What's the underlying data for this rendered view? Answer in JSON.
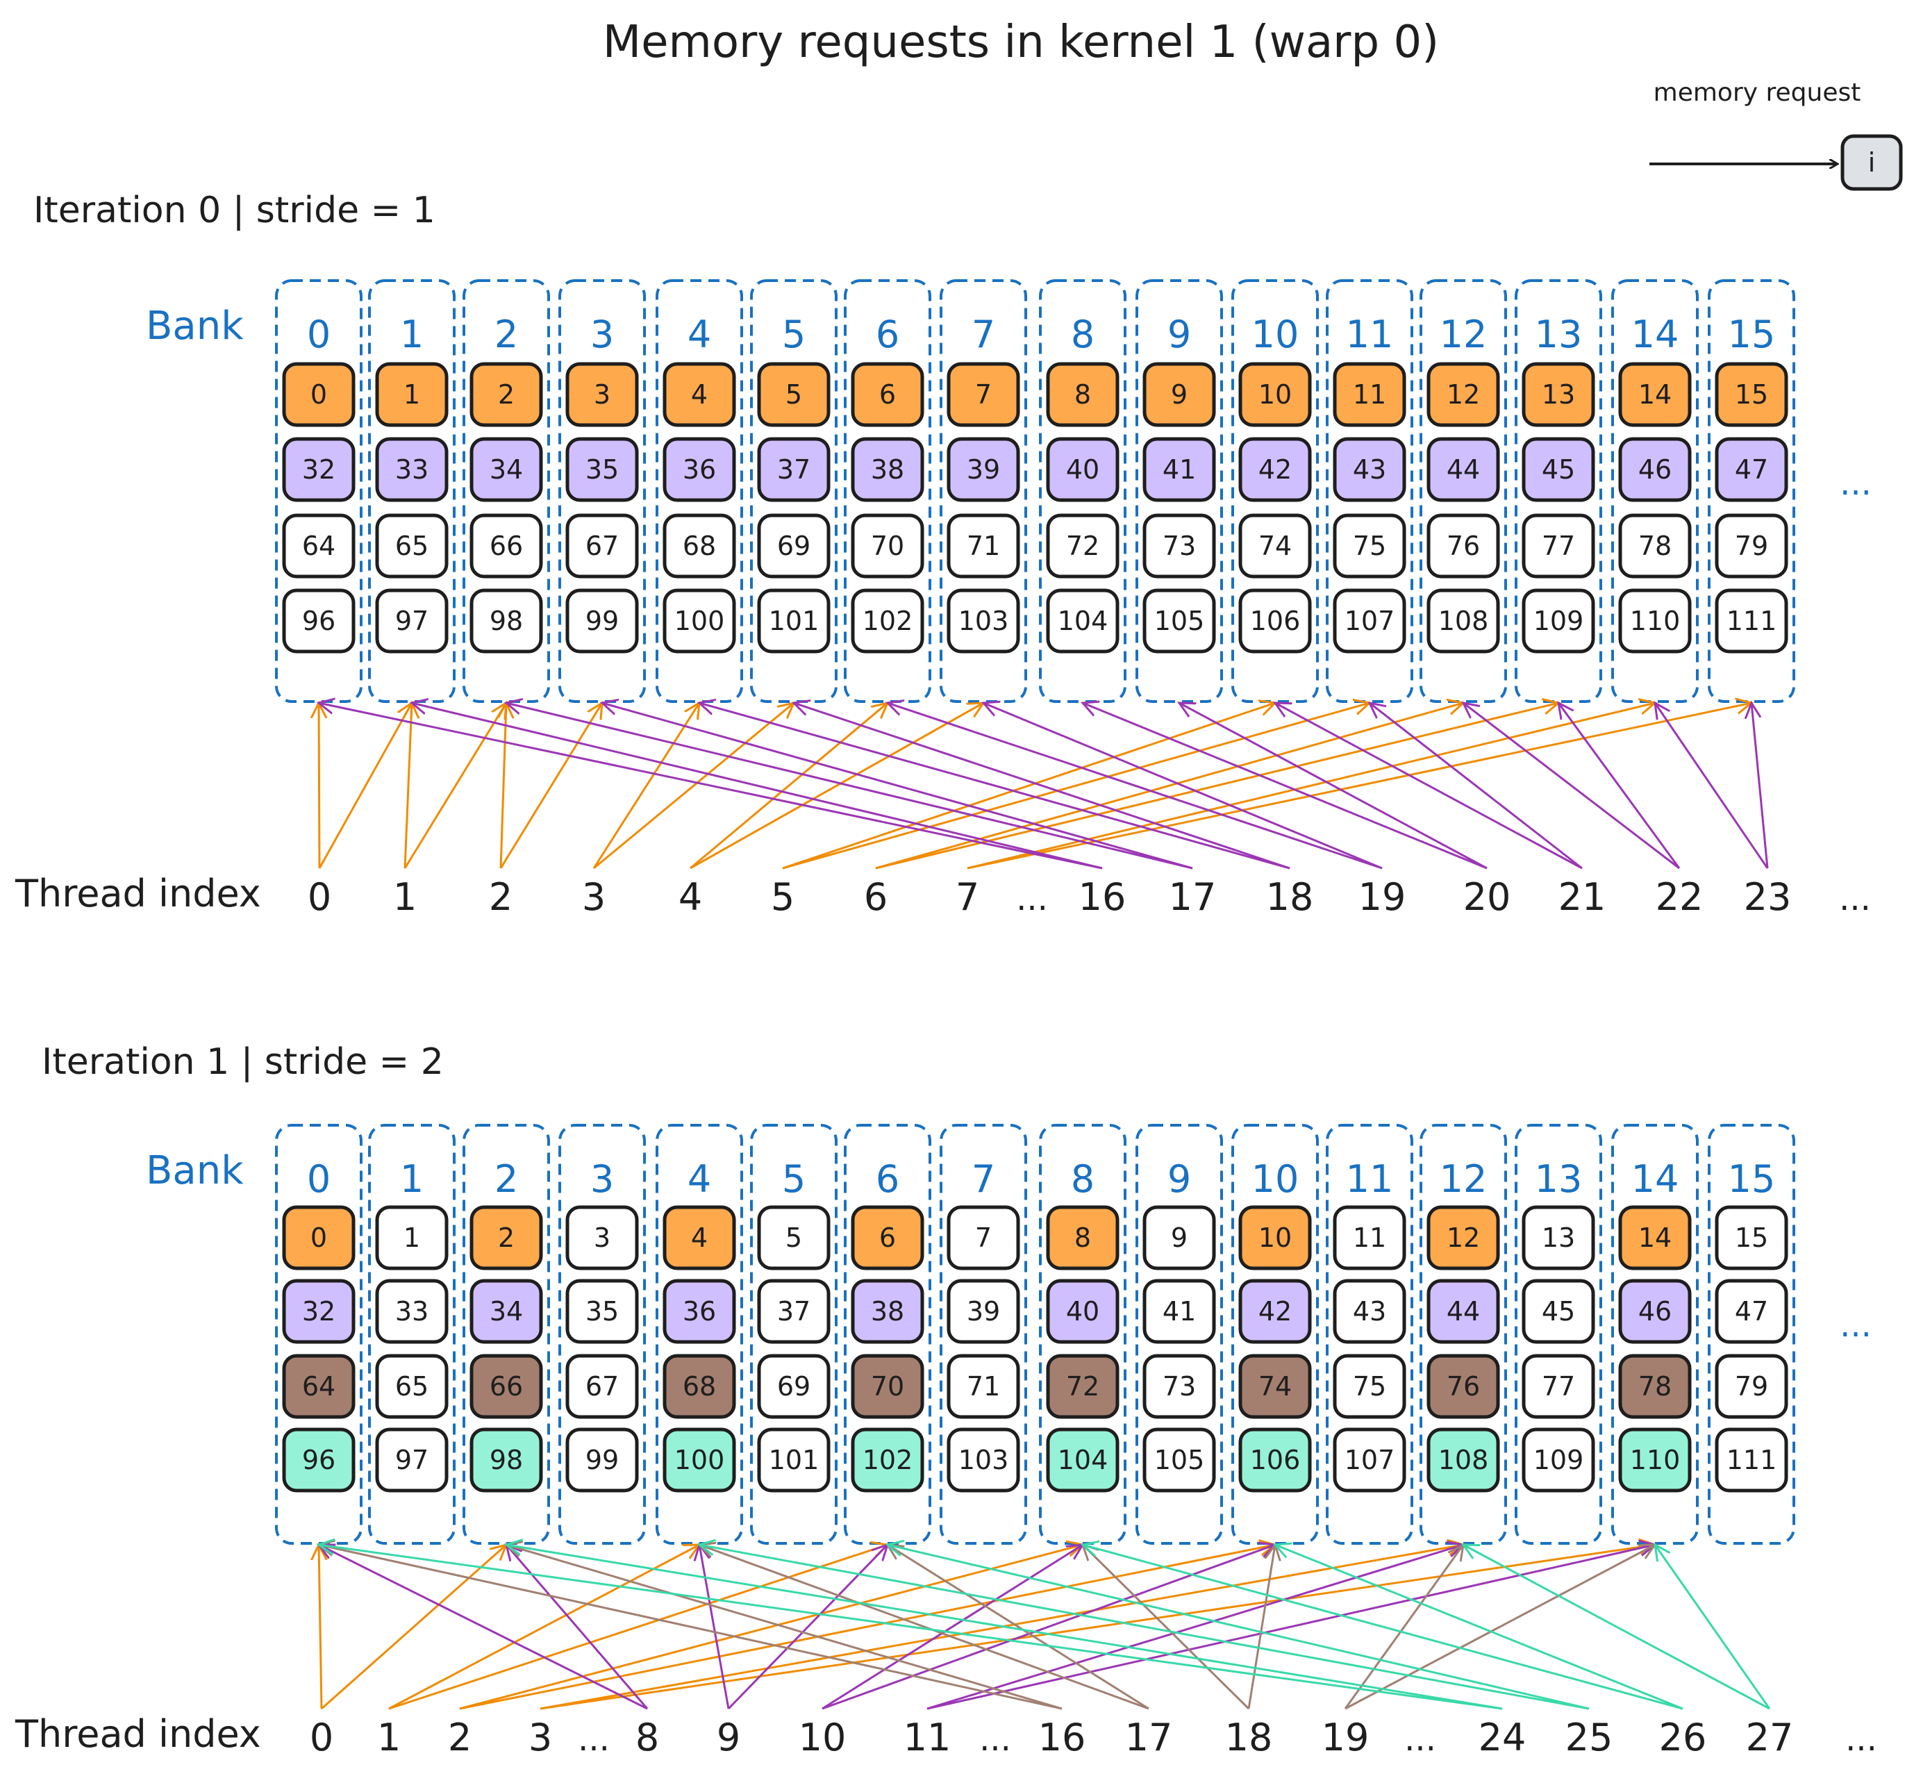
{
  "title": "Memory requests in kernel 1 (warp 0)",
  "legend": {
    "label": "memory request",
    "box_text": "i",
    "box_color": "#dee2e6"
  },
  "colors": {
    "orange": "#ffa94d",
    "purple": "#d0bfff",
    "brown": "#a47f6f",
    "teal": "#96f2d7",
    "white": "#ffffff",
    "bank_blue": "#1971c2",
    "arrow_orange": "#f08c00",
    "arrow_purple": "#9c36b5",
    "arrow_brown": "#a18072",
    "arrow_teal": "#38d9a9"
  },
  "banks": [
    "0",
    "1",
    "2",
    "3",
    "4",
    "5",
    "6",
    "7",
    "8",
    "9",
    "10",
    "11",
    "12",
    "13",
    "14",
    "15"
  ],
  "iterations": [
    {
      "label": "Iteration 0 | stride = 1",
      "bank_label": "Bank",
      "rows": [
        {
          "values": [
            "0",
            "1",
            "2",
            "3",
            "4",
            "5",
            "6",
            "7",
            "8",
            "9",
            "10",
            "11",
            "12",
            "13",
            "14",
            "15"
          ],
          "colors": [
            "orange",
            "orange",
            "orange",
            "orange",
            "orange",
            "orange",
            "orange",
            "orange",
            "orange",
            "orange",
            "orange",
            "orange",
            "orange",
            "orange",
            "orange",
            "orange"
          ]
        },
        {
          "values": [
            "32",
            "33",
            "34",
            "35",
            "36",
            "37",
            "38",
            "39",
            "40",
            "41",
            "42",
            "43",
            "44",
            "45",
            "46",
            "47"
          ],
          "colors": [
            "purple",
            "purple",
            "purple",
            "purple",
            "purple",
            "purple",
            "purple",
            "purple",
            "purple",
            "purple",
            "purple",
            "purple",
            "purple",
            "purple",
            "purple",
            "purple"
          ]
        },
        {
          "values": [
            "64",
            "65",
            "66",
            "67",
            "68",
            "69",
            "70",
            "71",
            "72",
            "73",
            "74",
            "75",
            "76",
            "77",
            "78",
            "79"
          ],
          "colors": [
            "white",
            "white",
            "white",
            "white",
            "white",
            "white",
            "white",
            "white",
            "white",
            "white",
            "white",
            "white",
            "white",
            "white",
            "white",
            "white"
          ]
        },
        {
          "values": [
            "96",
            "97",
            "98",
            "99",
            "100",
            "101",
            "102",
            "103",
            "104",
            "105",
            "106",
            "107",
            "108",
            "109",
            "110",
            "111"
          ],
          "colors": [
            "white",
            "white",
            "white",
            "white",
            "white",
            "white",
            "white",
            "white",
            "white",
            "white",
            "white",
            "white",
            "white",
            "white",
            "white",
            "white"
          ]
        }
      ],
      "more": "...",
      "thread_label": "Thread index",
      "threads": [
        "0",
        "1",
        "2",
        "3",
        "4",
        "5",
        "6",
        "7",
        "...",
        "16",
        "17",
        "18",
        "19",
        "20",
        "21",
        "22",
        "23",
        "..."
      ],
      "arrows": [
        {
          "thread": "0",
          "bank": 0,
          "color": "arrow_orange"
        },
        {
          "thread": "0",
          "bank": 1,
          "color": "arrow_orange"
        },
        {
          "thread": "1",
          "bank": 1,
          "color": "arrow_orange"
        },
        {
          "thread": "1",
          "bank": 2,
          "color": "arrow_orange"
        },
        {
          "thread": "2",
          "bank": 2,
          "color": "arrow_orange"
        },
        {
          "thread": "2",
          "bank": 3,
          "color": "arrow_orange"
        },
        {
          "thread": "3",
          "bank": 4,
          "color": "arrow_orange"
        },
        {
          "thread": "3",
          "bank": 5,
          "color": "arrow_orange"
        },
        {
          "thread": "4",
          "bank": 6,
          "color": "arrow_orange"
        },
        {
          "thread": "4",
          "bank": 7,
          "color": "arrow_orange"
        },
        {
          "thread": "5",
          "bank": 10,
          "color": "arrow_orange"
        },
        {
          "thread": "5",
          "bank": 11,
          "color": "arrow_orange"
        },
        {
          "thread": "6",
          "bank": 12,
          "color": "arrow_orange"
        },
        {
          "thread": "6",
          "bank": 13,
          "color": "arrow_orange"
        },
        {
          "thread": "7",
          "bank": 14,
          "color": "arrow_orange"
        },
        {
          "thread": "7",
          "bank": 15,
          "color": "arrow_orange"
        },
        {
          "thread": "16",
          "bank": 0,
          "color": "arrow_purple"
        },
        {
          "thread": "16",
          "bank": 1,
          "color": "arrow_purple"
        },
        {
          "thread": "17",
          "bank": 2,
          "color": "arrow_purple"
        },
        {
          "thread": "17",
          "bank": 3,
          "color": "arrow_purple"
        },
        {
          "thread": "18",
          "bank": 4,
          "color": "arrow_purple"
        },
        {
          "thread": "18",
          "bank": 5,
          "color": "arrow_purple"
        },
        {
          "thread": "19",
          "bank": 6,
          "color": "arrow_purple"
        },
        {
          "thread": "19",
          "bank": 7,
          "color": "arrow_purple"
        },
        {
          "thread": "20",
          "bank": 8,
          "color": "arrow_purple"
        },
        {
          "thread": "20",
          "bank": 9,
          "color": "arrow_purple"
        },
        {
          "thread": "21",
          "bank": 10,
          "color": "arrow_purple"
        },
        {
          "thread": "21",
          "bank": 11,
          "color": "arrow_purple"
        },
        {
          "thread": "22",
          "bank": 12,
          "color": "arrow_purple"
        },
        {
          "thread": "22",
          "bank": 13,
          "color": "arrow_purple"
        },
        {
          "thread": "23",
          "bank": 14,
          "color": "arrow_purple"
        },
        {
          "thread": "23",
          "bank": 15,
          "color": "arrow_purple"
        }
      ]
    },
    {
      "label": "Iteration 1 | stride = 2",
      "bank_label": "Bank",
      "rows": [
        {
          "values": [
            "0",
            "1",
            "2",
            "3",
            "4",
            "5",
            "6",
            "7",
            "8",
            "9",
            "10",
            "11",
            "12",
            "13",
            "14",
            "15"
          ],
          "colors": [
            "orange",
            "white",
            "orange",
            "white",
            "orange",
            "white",
            "orange",
            "white",
            "orange",
            "white",
            "orange",
            "white",
            "orange",
            "white",
            "orange",
            "white"
          ]
        },
        {
          "values": [
            "32",
            "33",
            "34",
            "35",
            "36",
            "37",
            "38",
            "39",
            "40",
            "41",
            "42",
            "43",
            "44",
            "45",
            "46",
            "47"
          ],
          "colors": [
            "purple",
            "white",
            "purple",
            "white",
            "purple",
            "white",
            "purple",
            "white",
            "purple",
            "white",
            "purple",
            "white",
            "purple",
            "white",
            "purple",
            "white"
          ]
        },
        {
          "values": [
            "64",
            "65",
            "66",
            "67",
            "68",
            "69",
            "70",
            "71",
            "72",
            "73",
            "74",
            "75",
            "76",
            "77",
            "78",
            "79"
          ],
          "colors": [
            "brown",
            "white",
            "brown",
            "white",
            "brown",
            "white",
            "brown",
            "white",
            "brown",
            "white",
            "brown",
            "white",
            "brown",
            "white",
            "brown",
            "white"
          ]
        },
        {
          "values": [
            "96",
            "97",
            "98",
            "99",
            "100",
            "101",
            "102",
            "103",
            "104",
            "105",
            "106",
            "107",
            "108",
            "109",
            "110",
            "111"
          ],
          "colors": [
            "teal",
            "white",
            "teal",
            "white",
            "teal",
            "white",
            "teal",
            "white",
            "teal",
            "white",
            "teal",
            "white",
            "teal",
            "white",
            "teal",
            "white"
          ]
        }
      ],
      "more": "...",
      "thread_label": "Thread index",
      "threads": [
        "0",
        "1",
        "2",
        "3",
        "...",
        "8",
        "9",
        "10",
        "11",
        "...",
        "16",
        "17",
        "18",
        "19",
        "...",
        "24",
        "25",
        "26",
        "27",
        "..."
      ],
      "arrows": [
        {
          "thread": "0",
          "bank": 0,
          "color": "arrow_orange"
        },
        {
          "thread": "0",
          "bank": 2,
          "color": "arrow_orange"
        },
        {
          "thread": "1",
          "bank": 4,
          "color": "arrow_orange"
        },
        {
          "thread": "1",
          "bank": 6,
          "color": "arrow_orange"
        },
        {
          "thread": "2",
          "bank": 8,
          "color": "arrow_orange"
        },
        {
          "thread": "2",
          "bank": 10,
          "color": "arrow_orange"
        },
        {
          "thread": "3",
          "bank": 12,
          "color": "arrow_orange"
        },
        {
          "thread": "3",
          "bank": 14,
          "color": "arrow_orange"
        },
        {
          "thread": "8",
          "bank": 0,
          "color": "arrow_purple"
        },
        {
          "thread": "8",
          "bank": 2,
          "color": "arrow_purple"
        },
        {
          "thread": "9",
          "bank": 4,
          "color": "arrow_purple"
        },
        {
          "thread": "9",
          "bank": 6,
          "color": "arrow_purple"
        },
        {
          "thread": "10",
          "bank": 8,
          "color": "arrow_purple"
        },
        {
          "thread": "10",
          "bank": 10,
          "color": "arrow_purple"
        },
        {
          "thread": "11",
          "bank": 12,
          "color": "arrow_purple"
        },
        {
          "thread": "11",
          "bank": 14,
          "color": "arrow_purple"
        },
        {
          "thread": "16",
          "bank": 0,
          "color": "arrow_brown"
        },
        {
          "thread": "16",
          "bank": 2,
          "color": "arrow_brown"
        },
        {
          "thread": "17",
          "bank": 4,
          "color": "arrow_brown"
        },
        {
          "thread": "17",
          "bank": 6,
          "color": "arrow_brown"
        },
        {
          "thread": "18",
          "bank": 8,
          "color": "arrow_brown"
        },
        {
          "thread": "18",
          "bank": 10,
          "color": "arrow_brown"
        },
        {
          "thread": "19",
          "bank": 12,
          "color": "arrow_brown"
        },
        {
          "thread": "19",
          "bank": 14,
          "color": "arrow_brown"
        },
        {
          "thread": "24",
          "bank": 0,
          "color": "arrow_teal"
        },
        {
          "thread": "24",
          "bank": 2,
          "color": "arrow_teal"
        },
        {
          "thread": "25",
          "bank": 4,
          "color": "arrow_teal"
        },
        {
          "thread": "25",
          "bank": 6,
          "color": "arrow_teal"
        },
        {
          "thread": "26",
          "bank": 8,
          "color": "arrow_teal"
        },
        {
          "thread": "26",
          "bank": 10,
          "color": "arrow_teal"
        },
        {
          "thread": "27",
          "bank": 12,
          "color": "arrow_teal"
        },
        {
          "thread": "27",
          "bank": 14,
          "color": "arrow_teal"
        }
      ]
    }
  ]
}
